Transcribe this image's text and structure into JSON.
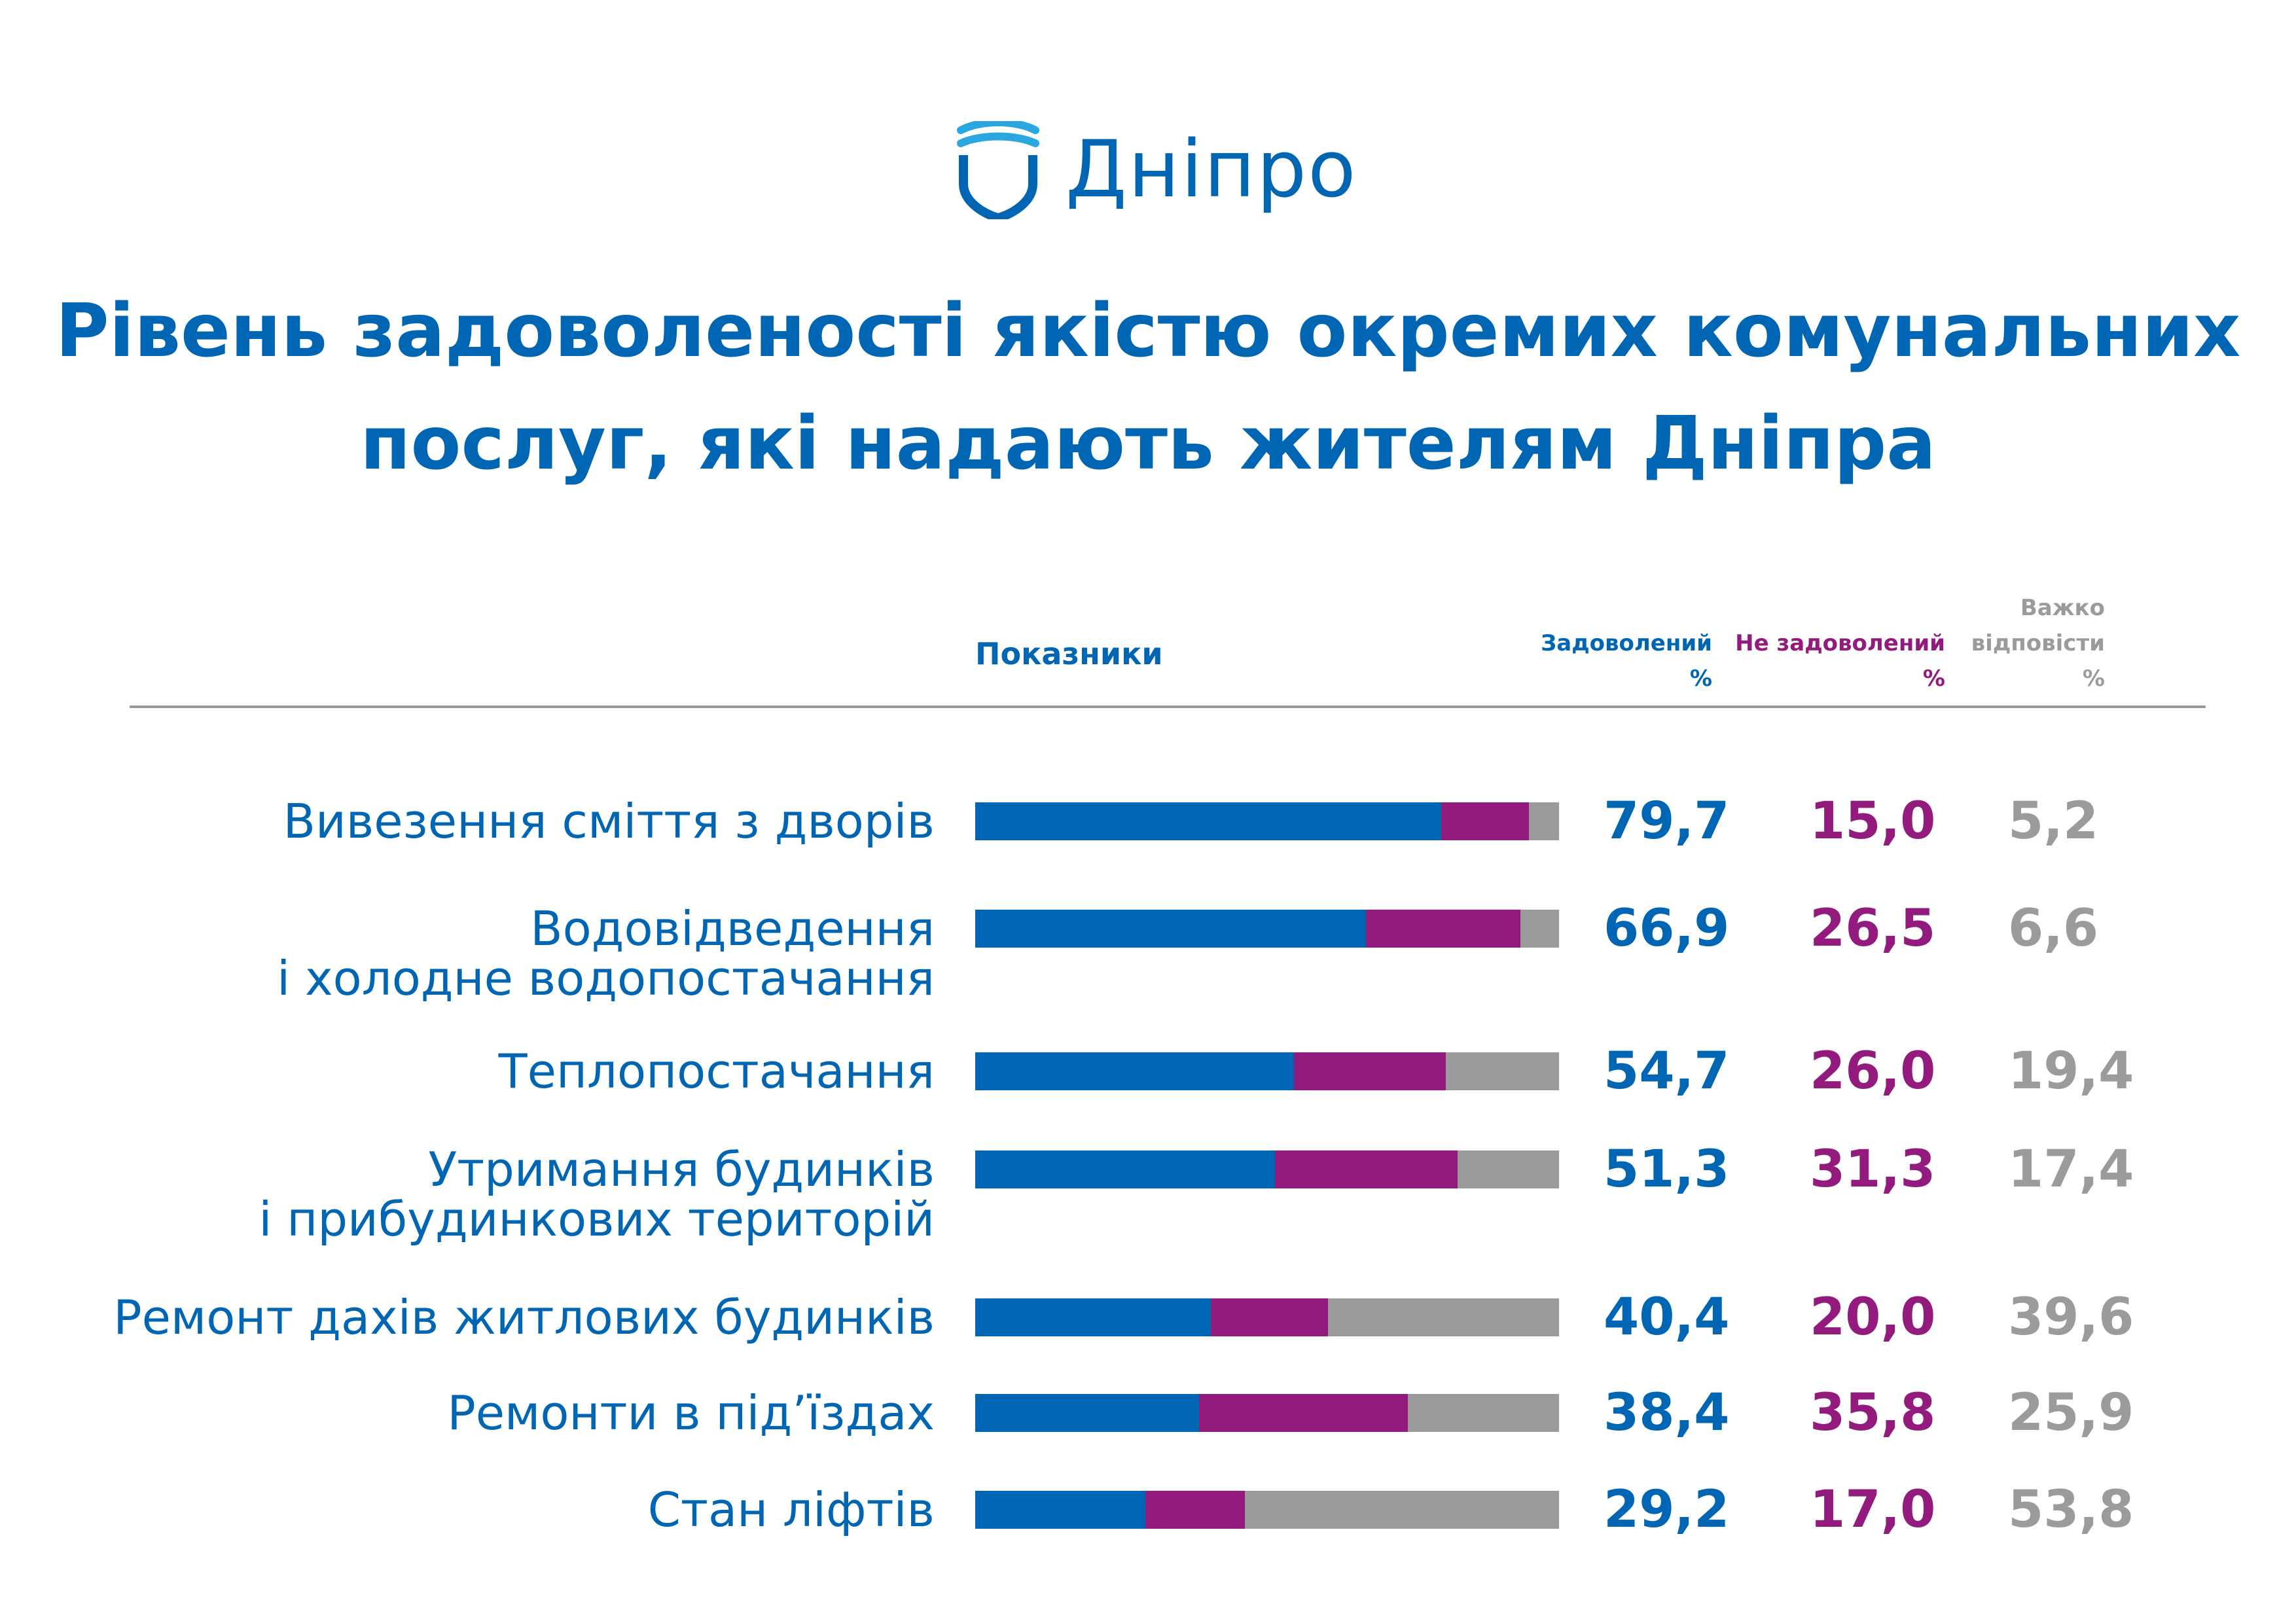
{
  "logo": {
    "text": "Дніпро",
    "icon": "dnipro-shield-wave-icon",
    "color": "#0066b3"
  },
  "title": [
    "Рівень задоволеності якістю окремих комунальних",
    "послуг, які надають жителям Дніпра"
  ],
  "header": {
    "indicators": "Показники",
    "satisfied": [
      "Задоволений",
      "%"
    ],
    "unsatisfied": [
      "Не задоволений",
      "%"
    ],
    "hard": [
      "Важко",
      "відповісти",
      "%"
    ]
  },
  "colors": {
    "satisfied": "#0066b3",
    "unsatisfied": "#931b7d",
    "hard": "#9b9b9b"
  },
  "chart_data": {
    "type": "bar",
    "stacked": true,
    "orientation": "horizontal",
    "xlim": [
      0,
      100
    ],
    "categories": [
      [
        "Вивезення сміття з дворів"
      ],
      [
        "Водовідведення",
        "і холодне водопостачання"
      ],
      [
        "Теплопостачання"
      ],
      [
        "Утримання будинків",
        "і прибудинкових територій"
      ],
      [
        "Ремонт дахів житлових будинків"
      ],
      [
        "Ремонти в під’їздах"
      ],
      [
        "Стан ліфтів"
      ]
    ],
    "series": [
      {
        "name": "Задоволений",
        "values": [
          79.7,
          66.9,
          54.7,
          51.3,
          40.4,
          38.4,
          29.2
        ]
      },
      {
        "name": "Не задоволений",
        "values": [
          15.0,
          26.5,
          26.0,
          31.3,
          20.0,
          35.8,
          17.0
        ]
      },
      {
        "name": "Важко відповісти",
        "values": [
          5.2,
          6.6,
          19.4,
          17.4,
          39.6,
          25.9,
          53.8
        ]
      }
    ],
    "data_labels": [
      [
        "79,7",
        "15,0",
        "5,2"
      ],
      [
        "66,9",
        "26,5",
        "6,6"
      ],
      [
        "54,7",
        "26,0",
        "19,4"
      ],
      [
        "51,3",
        "31,3",
        "17,4"
      ],
      [
        "40,4",
        "20,0",
        "39,6"
      ],
      [
        "38,4",
        "35,8",
        "25,9"
      ],
      [
        "29,2",
        "17,0",
        "53,8"
      ]
    ]
  }
}
